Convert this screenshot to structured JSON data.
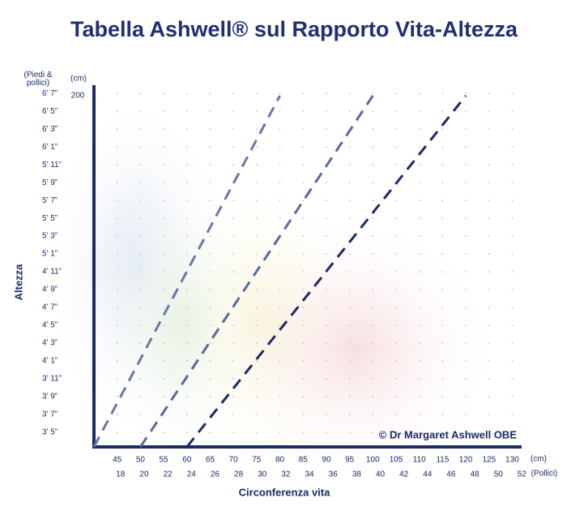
{
  "chart_data": {
    "type": "line",
    "title": "Tabella Ashwell®  sul Rapporto Vita-Altezza",
    "y_unit_label": "(Piedi & pollici)",
    "y_cm_label": "(cm)",
    "x_unit_label": "(cm)",
    "x2_unit_label": "(Pollici)",
    "ylabel": "Altezza",
    "xlabel": "Circonferenza vita",
    "annotation": "© Dr Margaret Ashwell OBE",
    "xlim": [
      40,
      132
    ],
    "ylim": [
      100,
      203
    ],
    "xticks": [
      45,
      50,
      55,
      60,
      65,
      70,
      75,
      80,
      85,
      90,
      95,
      100,
      105,
      110,
      115,
      120,
      125,
      130
    ],
    "x2ticks": [
      {
        "value": 45.72,
        "label": "18"
      },
      {
        "value": 50.8,
        "label": "20"
      },
      {
        "value": 55.88,
        "label": "22"
      },
      {
        "value": 60.96,
        "label": "24"
      },
      {
        "value": 66.04,
        "label": "26"
      },
      {
        "value": 71.12,
        "label": "28"
      },
      {
        "value": 76.2,
        "label": "30"
      },
      {
        "value": 81.28,
        "label": "32"
      },
      {
        "value": 86.36,
        "label": "34"
      },
      {
        "value": 91.44,
        "label": "36"
      },
      {
        "value": 96.52,
        "label": "38"
      },
      {
        "value": 101.6,
        "label": "40"
      },
      {
        "value": 106.68,
        "label": "42"
      },
      {
        "value": 111.76,
        "label": "44"
      },
      {
        "value": 116.84,
        "label": "46"
      },
      {
        "value": 121.92,
        "label": "48"
      },
      {
        "value": 127,
        "label": "50"
      },
      {
        "value": 132.08,
        "label": "52"
      }
    ],
    "yticks": [
      {
        "value": 200.66,
        "label": "6’ 7”"
      },
      {
        "value": 195.58,
        "label": "6’ 5”"
      },
      {
        "value": 190.5,
        "label": "6’ 3”"
      },
      {
        "value": 185.42,
        "label": "6’ 1”"
      },
      {
        "value": 180.34,
        "label": "5’ 11”"
      },
      {
        "value": 175.26,
        "label": "5’ 9”"
      },
      {
        "value": 170.18,
        "label": "5’ 7”"
      },
      {
        "value": 165.1,
        "label": "5’ 5”"
      },
      {
        "value": 160.02,
        "label": "5’ 3”"
      },
      {
        "value": 154.94,
        "label": "5’ 1”"
      },
      {
        "value": 149.86,
        "label": "4’ 11”"
      },
      {
        "value": 144.78,
        "label": "4’ 9”"
      },
      {
        "value": 139.7,
        "label": "4’ 7”"
      },
      {
        "value": 134.62,
        "label": "4’ 5”"
      },
      {
        "value": 129.54,
        "label": "4’ 3”"
      },
      {
        "value": 124.46,
        "label": "4’ 1”"
      },
      {
        "value": 119.38,
        "label": "3’ 11”"
      },
      {
        "value": 114.3,
        "label": "3’ 9”"
      },
      {
        "value": 109.22,
        "label": "3’ 7”"
      },
      {
        "value": 104.14,
        "label": "3’ 5”"
      }
    ],
    "y_cm_ticks": [
      200
    ],
    "grid": "dots",
    "series": [
      {
        "color": "#6b78a3",
        "x": [
          40,
          80
        ],
        "values": [
          100,
          200
        ]
      },
      {
        "color": "#5a6a99",
        "x": [
          50,
          100
        ],
        "values": [
          100,
          200
        ]
      },
      {
        "color": "#1c2a66",
        "x": [
          60,
          120
        ],
        "values": [
          100,
          200
        ]
      }
    ]
  }
}
